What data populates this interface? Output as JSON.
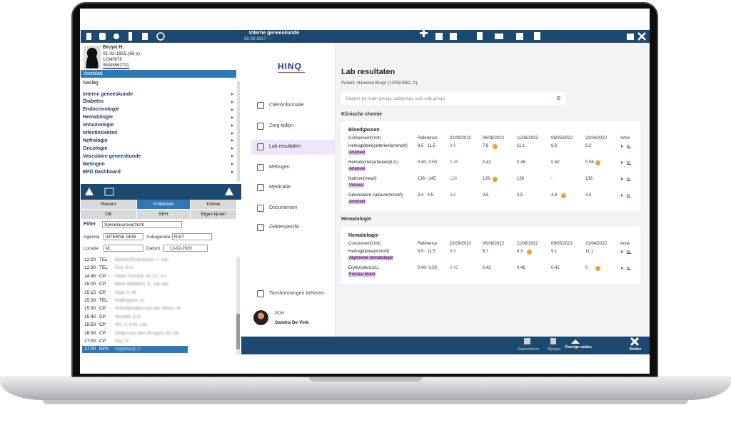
{
  "patient": {
    "name": "Bruyn H.",
    "dob": "01-02-1955 (65 jr)",
    "id": "12345678",
    "phone": "06345562731"
  },
  "nav": [
    "Voorblad",
    "Naslag",
    "Interne geneeskunde",
    "Diabetes",
    "Endocrinologie",
    "Hematologie",
    "Immunologie",
    "Infectieziekten",
    "Nefrologie",
    "Oncologie",
    "Vasculaire geneeskunde",
    "Metingen",
    "EPD Dashboard"
  ],
  "tabs": [
    "Recent",
    "Polikliniek",
    "Kliniek",
    "OK",
    "SEH",
    "Eigen lijsten"
  ],
  "filter": {
    "title": "Filter",
    "view": "Spreekuuroverzicht",
    "agenda_label": "Agenda",
    "agenda": "INTERNE GENI",
    "subagenda_label": "Subagenda",
    "subagenda": "RUIT",
    "location_label": "Locatie",
    "location": "VL",
    "date_label": "Datum",
    "date": "13-02-2020"
  },
  "appointments": [
    {
      "time": "12:20",
      "type": "TEL",
      "name": "Berkel-Rozenboom, I. van"
    },
    {
      "time": "12:30",
      "type": "TEL",
      "name": "Dux, B.K."
    },
    {
      "time": "14:45",
      "type": "CP",
      "name": "Hoek-Tuinstal, M.J.C. in t"
    },
    {
      "time": "15:00",
      "type": "CP",
      "name": "Meer-Wielders, E. van der"
    },
    {
      "time": "15:15",
      "type": "CP",
      "name": "Zaal, A. M."
    },
    {
      "time": "15:30",
      "type": "TEL",
      "name": "Dulfhuijzen, D."
    },
    {
      "time": "15:30",
      "type": "CP",
      "name": "Schuitemaker-van der Steen, W."
    },
    {
      "time": "15:40",
      "type": "CP",
      "name": "Woudel, D.E."
    },
    {
      "time": "15:50",
      "type": "CP",
      "name": "Wit, C.A.M. van"
    },
    {
      "time": "16:00",
      "type": "CP",
      "name": "Seijen-van den Boogert, M.J.M."
    },
    {
      "time": "17:00",
      "type": "CP",
      "name": "Vos, R."
    },
    {
      "time": "17:30",
      "type": "NPS",
      "name": "Vuijsteerd, F."
    }
  ],
  "header": {
    "department": "Interne geneeskunde",
    "date": "05-02-2017 - -"
  },
  "sidebar": {
    "logo": "HINQ",
    "items": [
      "Cliëntinformatie",
      "Zorg tijdlijn",
      "Lab resultaten",
      "Metingen",
      "Medicatie",
      "Documenten",
      "Ziektespecific"
    ],
    "consent": "Toestemmingen beheren",
    "user_role": "POH",
    "user_name": "Sandra De Vink"
  },
  "content": {
    "title": "Lab resultaten",
    "patient": "Patient: Hanneke Bruyn (12/05/1982, V)",
    "search_placeholder": "Search by main group, subgroup, sub sub group",
    "sections": [
      {
        "title": "Klinische chemie",
        "cards": [
          {
            "title": "Bloedgassen",
            "columns": [
              "Component(Unit)",
              "Reference",
              "22/09/2022",
              "06/08/2022",
              "11/06/2022",
              "08/05/2022",
              "21/04/2022",
              "Actie"
            ],
            "rows": [
              {
                "component": "Hemoglobine(arterieel)(mmol/l)",
                "tag": "Arterieel",
                "reference": "8.5 - 11.5",
                "values": [
                  "8.9",
                  "7.6",
                  "11.1",
                  "8.6",
                  "9.2"
                ],
                "flags": [
                  false,
                  true,
                  false,
                  false,
                  false
                ]
              },
              {
                "component": "Hematocriet(arterieel)(L/L)",
                "tag": "Arterieel",
                "reference": "0.40- 0.50",
                "values": [
                  "0.45",
                  "0.42",
                  "0.46",
                  "0.42",
                  "0.56"
                ],
                "flags": [
                  false,
                  false,
                  false,
                  false,
                  true
                ]
              },
              {
                "component": "Natrium(meq/l)",
                "tag": "Veneus",
                "reference": "136 - 145",
                "values": [
                  "138",
                  "128",
                  "138",
                  "-",
                  "138"
                ],
                "flags": [
                  false,
                  true,
                  false,
                  false,
                  false
                ]
              },
              {
                "component": "Geioniseerd calcium(mmol/l)",
                "tag": "Arterieel",
                "reference": "3.4 - 4.5",
                "values": [
                  "3.6",
                  "3.5",
                  "3.5",
                  "4.8",
                  "4.3"
                ],
                "flags": [
                  false,
                  false,
                  false,
                  true,
                  false
                ]
              }
            ]
          }
        ]
      },
      {
        "title": "Hematologie",
        "cards": [
          {
            "title": "Hematologie",
            "columns": [
              "Component(Unit)",
              "Reference",
              "22/09/2022",
              "06/08/2022",
              "11/06/2022",
              "08/05/2022",
              "21/04/2022",
              "Actie"
            ],
            "rows": [
              {
                "component": "Hemoglobine(mmol/l)",
                "tag": "Algemene hematologie",
                "reference": "8.5 - 11.5",
                "values": [
                  "8.9",
                  "8.7",
                  "8.3",
                  "9.1",
                  "11.1"
                ],
                "flags": [
                  false,
                  false,
                  true,
                  false,
                  false
                ]
              },
              {
                "component": "Erytrocyten(L/L)",
                "tag": "Foetaal bloed",
                "reference": "0.40- 0.50",
                "values": [
                  "0.45",
                  "0.42",
                  "0.46",
                  "0.42",
                  "0"
                ],
                "flags": [
                  false,
                  false,
                  false,
                  false,
                  true
                ]
              }
            ]
          }
        ]
      }
    ]
  },
  "footer": [
    "Supervisieren",
    "Wijzigen",
    "Overige acties",
    "Sluiten"
  ]
}
